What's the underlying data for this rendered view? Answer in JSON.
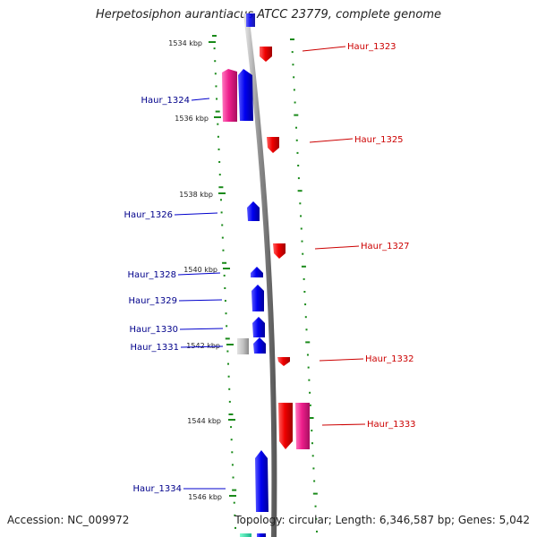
{
  "title": "Herpetosiphon aurantiacus ATCC 23779, complete genome",
  "footer": {
    "accession": "Accession: NC_009972",
    "stats": "Topology: circular; Length: 6,346,587 bp; Genes: 5,042"
  },
  "colors": {
    "forward_cds": "#0000ee",
    "reverse_cds": "#ee0000",
    "forward_label": "#00008b",
    "reverse_label": "#cc0000",
    "rna_magenta": "#ee1f8c",
    "pseudo_grey": "#bbbbbb",
    "tick": "#1a8a1a",
    "backbone": "#888888"
  },
  "scale_labels": [
    "1534 kbp",
    "1536 kbp",
    "1538 kbp",
    "1540 kbp",
    "1542 kbp",
    "1544 kbp",
    "1546 kbp"
  ],
  "genes": {
    "reverse": [
      "Haur_1323",
      "Haur_1325",
      "Haur_1327",
      "Haur_1332",
      "Haur_1333"
    ],
    "forward": [
      "Haur_1324",
      "Haur_1326",
      "Haur_1328",
      "Haur_1329",
      "Haur_1330",
      "Haur_1331",
      "Haur_1334"
    ]
  }
}
